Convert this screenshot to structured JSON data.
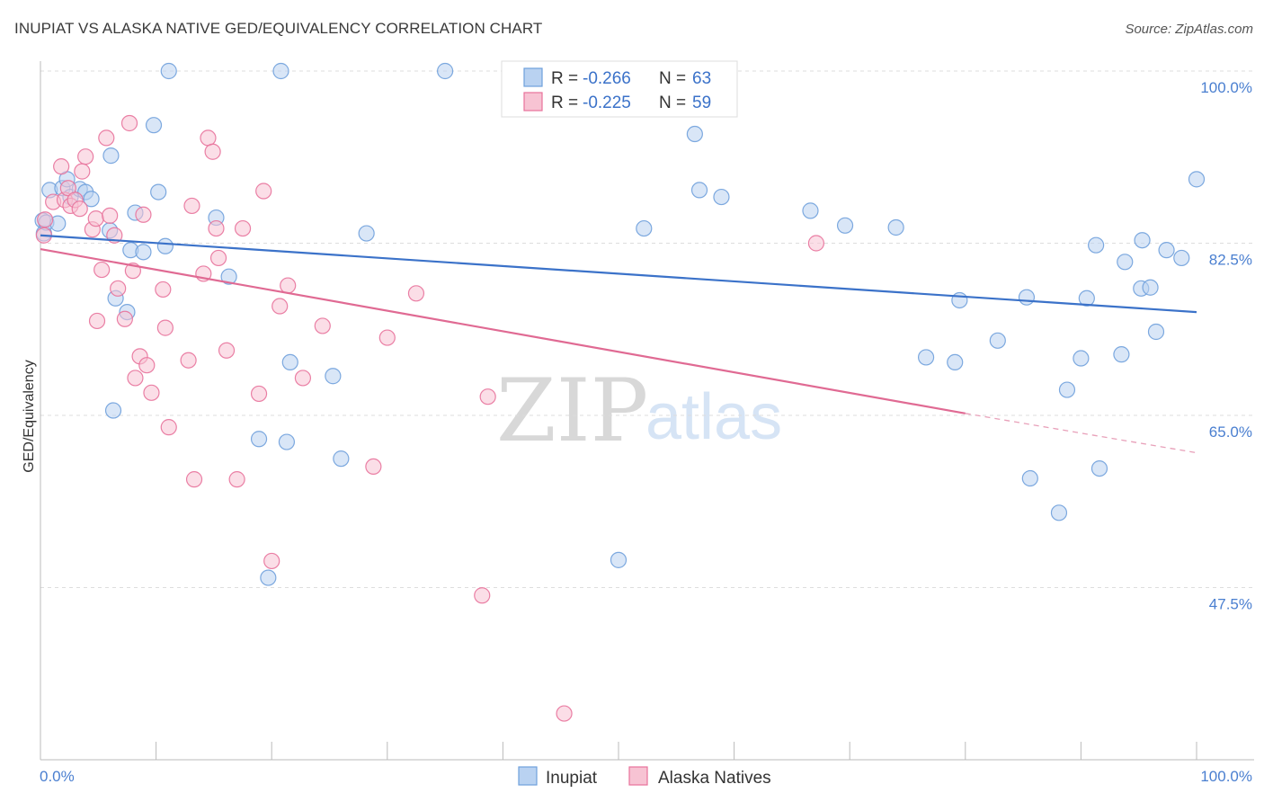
{
  "title": "INUPIAT VS ALASKA NATIVE GED/EQUIVALENCY CORRELATION CHART",
  "source": "Source: ZipAtlas.com",
  "watermark": {
    "zip": "ZIP",
    "atlas": "atlas"
  },
  "colors": {
    "blue": "#6fa0dc",
    "blue_fill": "#b9d2f1",
    "pink": "#e8729b",
    "pink_fill": "#f7c3d3",
    "axis_text": "#4a7fd0",
    "grid": "#dddddd"
  },
  "legend": {
    "r_label": "R =",
    "n_label": "N =",
    "series1": {
      "r": "-0.266",
      "n": "63"
    },
    "series2": {
      "r": "-0.225",
      "n": "59"
    }
  },
  "chart_data": {
    "type": "scatter",
    "title": "INUPIAT VS ALASKA NATIVE GED/EQUIVALENCY CORRELATION CHART",
    "xlabel": "",
    "ylabel": "GED/Equivalency",
    "xlim": [
      0,
      100
    ],
    "ylim": [
      31.5,
      102
    ],
    "x_tick_labels": [
      "0.0%",
      "100.0%"
    ],
    "y_ticks": [
      100.0,
      82.5,
      65.0,
      47.5
    ],
    "y_tick_labels": [
      "100.0%",
      "82.5%",
      "65.0%",
      "47.5%"
    ],
    "grid": true,
    "series": [
      {
        "name": "Inupiat",
        "r": -0.266,
        "n": 63,
        "trend": {
          "x0": 0,
          "y0": 83.3,
          "x1": 100,
          "y1": 75.5
        },
        "points": [
          [
            0.2,
            84.8
          ],
          [
            0.3,
            83.5
          ],
          [
            0.5,
            84.6
          ],
          [
            0.8,
            87.9
          ],
          [
            1.5,
            84.5
          ],
          [
            1.9,
            88.1
          ],
          [
            2.3,
            89.0
          ],
          [
            2.6,
            87.2
          ],
          [
            3.4,
            88.0
          ],
          [
            3.9,
            87.7
          ],
          [
            4.4,
            87.0
          ],
          [
            6.0,
            83.8
          ],
          [
            6.1,
            91.4
          ],
          [
            6.3,
            65.5
          ],
          [
            6.5,
            76.9
          ],
          [
            7.5,
            75.5
          ],
          [
            7.8,
            81.8
          ],
          [
            8.2,
            85.6
          ],
          [
            8.9,
            81.6
          ],
          [
            9.8,
            94.5
          ],
          [
            10.2,
            87.7
          ],
          [
            10.8,
            82.2
          ],
          [
            11.1,
            100.0
          ],
          [
            15.2,
            85.1
          ],
          [
            16.3,
            79.1
          ],
          [
            18.9,
            62.6
          ],
          [
            19.7,
            48.5
          ],
          [
            20.8,
            100.0
          ],
          [
            21.3,
            62.3
          ],
          [
            21.6,
            70.4
          ],
          [
            25.3,
            69.0
          ],
          [
            26.0,
            60.6
          ],
          [
            28.2,
            83.5
          ],
          [
            35.0,
            100.0
          ],
          [
            50.0,
            50.3
          ],
          [
            52.2,
            84.0
          ],
          [
            56.6,
            93.6
          ],
          [
            57.0,
            87.9
          ],
          [
            58.9,
            87.2
          ],
          [
            66.6,
            85.8
          ],
          [
            69.6,
            84.3
          ],
          [
            74.0,
            84.1
          ],
          [
            76.6,
            70.9
          ],
          [
            79.1,
            70.4
          ],
          [
            79.5,
            76.7
          ],
          [
            82.8,
            72.6
          ],
          [
            85.3,
            77.0
          ],
          [
            85.6,
            58.6
          ],
          [
            88.1,
            55.1
          ],
          [
            88.8,
            67.6
          ],
          [
            90.0,
            70.8
          ],
          [
            90.5,
            76.9
          ],
          [
            91.3,
            82.3
          ],
          [
            91.6,
            59.6
          ],
          [
            93.5,
            71.2
          ],
          [
            93.8,
            80.6
          ],
          [
            95.2,
            77.9
          ],
          [
            95.3,
            82.8
          ],
          [
            96.0,
            78.0
          ],
          [
            96.5,
            73.5
          ],
          [
            97.4,
            81.8
          ],
          [
            100.0,
            89.0
          ],
          [
            98.7,
            81.0
          ]
        ]
      },
      {
        "name": "Alaska Natives",
        "r": -0.225,
        "n": 59,
        "trend": {
          "x0": 0,
          "y0": 81.9,
          "x1": 80,
          "y1": 65.2,
          "dash_x1": 100,
          "dash_y1": 61.2
        },
        "points": [
          [
            0.3,
            83.3
          ],
          [
            0.4,
            84.9
          ],
          [
            1.1,
            86.7
          ],
          [
            1.8,
            90.3
          ],
          [
            2.1,
            86.9
          ],
          [
            2.4,
            88.1
          ],
          [
            2.6,
            86.3
          ],
          [
            3.0,
            86.9
          ],
          [
            3.4,
            86.0
          ],
          [
            3.6,
            89.8
          ],
          [
            3.9,
            91.3
          ],
          [
            4.5,
            83.9
          ],
          [
            4.8,
            85.0
          ],
          [
            4.9,
            74.6
          ],
          [
            5.3,
            79.8
          ],
          [
            5.7,
            93.2
          ],
          [
            6.0,
            85.3
          ],
          [
            6.4,
            83.3
          ],
          [
            6.7,
            77.9
          ],
          [
            7.3,
            74.8
          ],
          [
            7.7,
            94.7
          ],
          [
            8.0,
            79.7
          ],
          [
            8.2,
            68.8
          ],
          [
            8.6,
            71.0
          ],
          [
            8.9,
            85.4
          ],
          [
            9.2,
            70.1
          ],
          [
            9.6,
            67.3
          ],
          [
            10.6,
            77.8
          ],
          [
            10.8,
            73.9
          ],
          [
            11.1,
            63.8
          ],
          [
            12.8,
            70.6
          ],
          [
            13.1,
            86.3
          ],
          [
            13.3,
            58.5
          ],
          [
            14.1,
            79.4
          ],
          [
            14.5,
            93.2
          ],
          [
            14.9,
            91.8
          ],
          [
            15.2,
            84.0
          ],
          [
            15.4,
            81.0
          ],
          [
            16.1,
            71.6
          ],
          [
            17.0,
            58.5
          ],
          [
            17.5,
            84.0
          ],
          [
            18.9,
            67.2
          ],
          [
            19.3,
            87.8
          ],
          [
            20.0,
            50.2
          ],
          [
            20.7,
            76.1
          ],
          [
            21.4,
            78.2
          ],
          [
            22.7,
            68.8
          ],
          [
            24.4,
            74.1
          ],
          [
            28.8,
            59.8
          ],
          [
            30.0,
            72.9
          ],
          [
            32.5,
            77.4
          ],
          [
            38.2,
            46.7
          ],
          [
            38.7,
            66.9
          ],
          [
            40.6,
            100.0
          ],
          [
            41.4,
            100.0
          ],
          [
            45.3,
            34.7
          ],
          [
            47.0,
            100.0
          ],
          [
            48.0,
            100.0
          ],
          [
            67.1,
            82.5
          ]
        ]
      }
    ]
  }
}
